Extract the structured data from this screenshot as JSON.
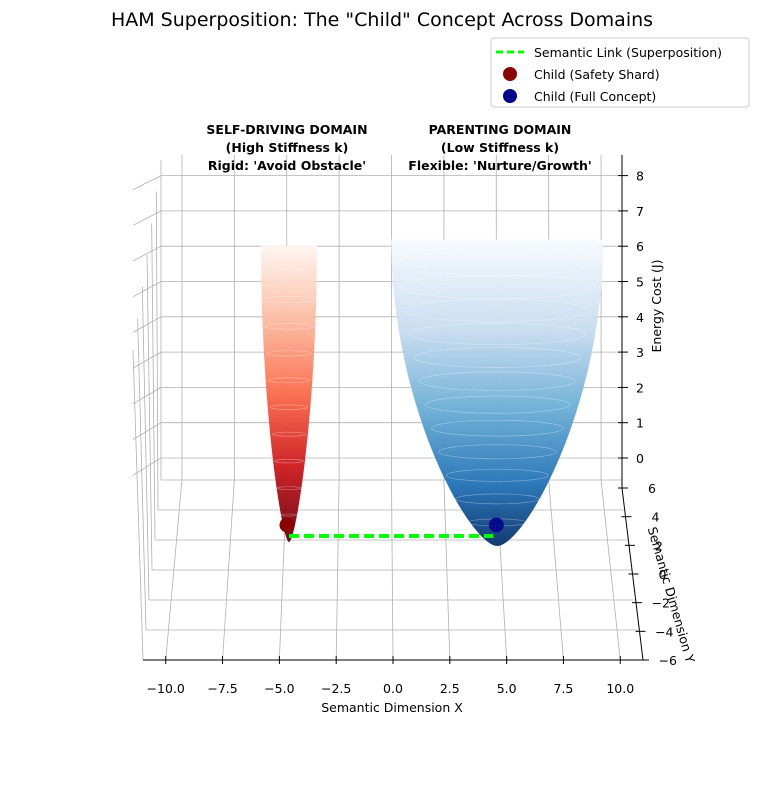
{
  "chart_data": {
    "type": "surface3d",
    "title": "HAM Superposition: The \"Child\" Concept Across Domains",
    "xlabel": "Semantic Dimension X",
    "ylabel": "Semantic Dimension Y",
    "zlabel": "Energy Cost (J)",
    "xlim": [
      -11,
      11
    ],
    "ylim": [
      -6,
      6
    ],
    "zlim": [
      -1,
      8.5
    ],
    "x_ticks": [
      "−10.0",
      "−7.5",
      "−5.0",
      "−2.5",
      "0.0",
      "2.5",
      "5.0",
      "7.5",
      "10.0"
    ],
    "x_tick_values": [
      -10,
      -7.5,
      -5,
      -2.5,
      0,
      2.5,
      5,
      7.5,
      10
    ],
    "y_ticks": [
      "−6",
      "−4",
      "−2",
      "0",
      "2",
      "4",
      "6"
    ],
    "y_tick_values": [
      -6,
      -4,
      -2,
      0,
      2,
      4,
      6
    ],
    "z_ticks": [
      "0",
      "1",
      "2",
      "3",
      "4",
      "5",
      "6",
      "7",
      "8"
    ],
    "z_tick_values": [
      0,
      1,
      2,
      3,
      4,
      5,
      6,
      7,
      8
    ],
    "grid": true,
    "legend_position": "top-right",
    "surfaces": [
      {
        "center_x": -5,
        "center_y": 0,
        "min_energy": -1,
        "max_energy": 6.3,
        "colormap": "Reds",
        "color": "#b2182b"
      },
      {
        "center_x": 5,
        "center_y": 0,
        "min_energy": -1,
        "max_energy": 7.6,
        "colormap": "Blues",
        "color": "#2c6fb0"
      }
    ],
    "series": [
      {
        "name": "Semantic Link (Superposition)",
        "type": "line",
        "style": "dashed",
        "color": "#00ff00",
        "x": [
          -5,
          5
        ],
        "y": [
          0,
          0
        ],
        "z": [
          -1,
          -1
        ]
      },
      {
        "name": "Child (Safety Shard)",
        "type": "scatter",
        "color": "#8b0000",
        "x": [
          -5
        ],
        "y": [
          0
        ],
        "z": [
          -0.6
        ]
      },
      {
        "name": "Child (Full Concept)",
        "type": "scatter",
        "color": "#00008b",
        "x": [
          5
        ],
        "y": [
          0
        ],
        "z": [
          -0.6
        ]
      }
    ],
    "annotations": [
      {
        "lines": [
          "SELF-DRIVING DOMAIN",
          "(High Stiffness k)",
          "Rigid: 'Avoid Obstacle'"
        ]
      },
      {
        "lines": [
          "PARENTING DOMAIN",
          "(Low Stiffness k)",
          "Flexible: 'Nurture/Growth'"
        ]
      }
    ]
  }
}
